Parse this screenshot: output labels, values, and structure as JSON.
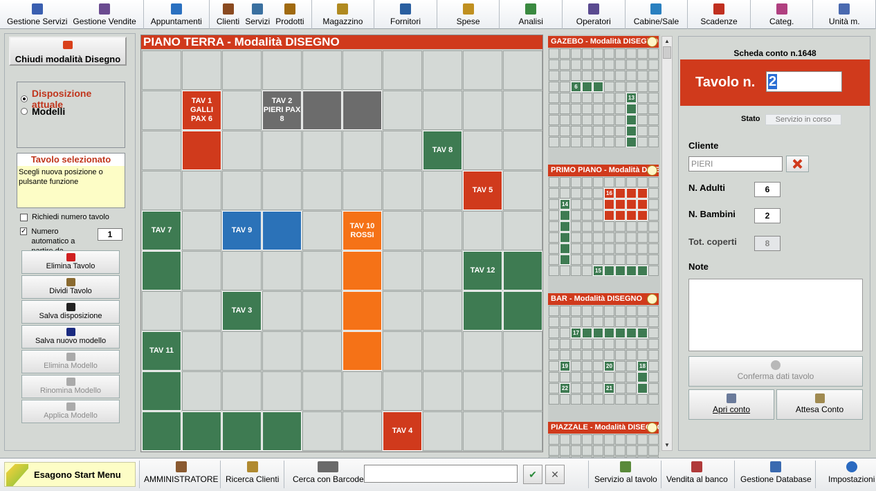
{
  "toolbar": {
    "items": [
      {
        "label": "Gestione Servizi",
        "icon": "services-icon",
        "color": "#3a5fb0"
      },
      {
        "label": "Gestione Vendite",
        "icon": "sales-icon",
        "color": "#6a4a90"
      },
      {
        "label": "Appuntamenti",
        "icon": "calendar-icon",
        "color": "#2a70c0"
      },
      {
        "label": "Clienti",
        "icon": "clients-icon",
        "color": "#8a4a20"
      },
      {
        "label": "Servizi",
        "icon": "services-list-icon",
        "color": "#3a70a0"
      },
      {
        "label": "Prodotti",
        "icon": "products-icon",
        "color": "#a06a10"
      },
      {
        "label": "Magazzino",
        "icon": "warehouse-icon",
        "color": "#b08a20"
      },
      {
        "label": "Fornitori",
        "icon": "suppliers-icon",
        "color": "#2a5fa0"
      },
      {
        "label": "Spese",
        "icon": "expenses-icon",
        "color": "#c09020"
      },
      {
        "label": "Analisi",
        "icon": "analysis-icon",
        "color": "#3a8a40"
      },
      {
        "label": "Operatori",
        "icon": "operators-icon",
        "color": "#5a4a90"
      },
      {
        "label": "Cabine/Sale",
        "icon": "rooms-icon",
        "color": "#2a80c0"
      },
      {
        "label": "Scadenze",
        "icon": "deadlines-icon",
        "color": "#c03020"
      },
      {
        "label": "Categ.",
        "icon": "categories-icon",
        "color": "#b04080"
      },
      {
        "label": "Unità m.",
        "icon": "units-icon",
        "color": "#4a6ab0"
      }
    ]
  },
  "left_panel": {
    "close_label": "Chiudi modalità Disegno",
    "radio_current": "Disposizione attuale",
    "radio_models": "Modelli",
    "selected_title": "Tavolo selezionato",
    "selected_msg": "Scegli nuova posizione o pulsante funzione",
    "ask_number_label": "Richiedi numero tavolo",
    "auto_number_label": "Numero automatico a partire da ....",
    "auto_number_value": "1",
    "buttons": [
      {
        "label": "Elimina Tavolo",
        "icon": "delete-icon",
        "color": "#d02020",
        "enabled": true
      },
      {
        "label": "Dividi Tavolo",
        "icon": "split-icon",
        "color": "#8a6a30",
        "enabled": true
      },
      {
        "label": "Salva disposizione",
        "icon": "save-icon",
        "color": "#222",
        "enabled": true
      },
      {
        "label": "Salva nuovo modello",
        "icon": "save-new-icon",
        "color": "#1a2a80",
        "enabled": true
      },
      {
        "label": "Elimina Modello",
        "icon": "delete-model-icon",
        "color": "#aaa",
        "enabled": false
      },
      {
        "label": "Rinomina Modello",
        "icon": "rename-icon",
        "color": "#aaa",
        "enabled": false
      },
      {
        "label": "Applica Modello",
        "icon": "apply-icon",
        "color": "#aaa",
        "enabled": false
      }
    ]
  },
  "grid": {
    "title": "PIANO TERRA - Modalità DISEGNO",
    "colors": {
      "red": "#d03a1c",
      "gray": "#6c6c6c",
      "green": "#3e7b52",
      "blue": "#2b72b8",
      "orange": "#f57217"
    },
    "cells": [
      {
        "r": 1,
        "c": 1,
        "color": "red",
        "label": "TAV 1 GALLI PAX 6"
      },
      {
        "r": 1,
        "c": 3,
        "color": "gray",
        "label": "TAV 2 PIERI PAX 8"
      },
      {
        "r": 1,
        "c": 4,
        "color": "gray",
        "label": ""
      },
      {
        "r": 1,
        "c": 5,
        "color": "gray",
        "label": ""
      },
      {
        "r": 2,
        "c": 1,
        "color": "red",
        "label": ""
      },
      {
        "r": 2,
        "c": 7,
        "color": "green",
        "label": "TAV 8"
      },
      {
        "r": 3,
        "c": 8,
        "color": "red",
        "label": "TAV 5"
      },
      {
        "r": 4,
        "c": 0,
        "color": "green",
        "label": "TAV 7"
      },
      {
        "r": 4,
        "c": 2,
        "color": "blue",
        "label": "TAV 9"
      },
      {
        "r": 4,
        "c": 3,
        "color": "blue",
        "label": ""
      },
      {
        "r": 4,
        "c": 5,
        "color": "orange",
        "label": "TAV 10 ROSSI"
      },
      {
        "r": 5,
        "c": 0,
        "color": "green",
        "label": ""
      },
      {
        "r": 5,
        "c": 5,
        "color": "orange",
        "label": ""
      },
      {
        "r": 5,
        "c": 8,
        "color": "green",
        "label": "TAV 12"
      },
      {
        "r": 5,
        "c": 9,
        "color": "green",
        "label": ""
      },
      {
        "r": 6,
        "c": 2,
        "color": "green",
        "label": "TAV 3"
      },
      {
        "r": 6,
        "c": 5,
        "color": "orange",
        "label": ""
      },
      {
        "r": 6,
        "c": 8,
        "color": "green",
        "label": ""
      },
      {
        "r": 6,
        "c": 9,
        "color": "green",
        "label": ""
      },
      {
        "r": 7,
        "c": 0,
        "color": "green",
        "label": "TAV 11"
      },
      {
        "r": 7,
        "c": 5,
        "color": "orange",
        "label": ""
      },
      {
        "r": 8,
        "c": 0,
        "color": "green",
        "label": ""
      },
      {
        "r": 9,
        "c": 0,
        "color": "green",
        "label": ""
      },
      {
        "r": 9,
        "c": 1,
        "color": "green",
        "label": ""
      },
      {
        "r": 9,
        "c": 2,
        "color": "green",
        "label": ""
      },
      {
        "r": 9,
        "c": 3,
        "color": "green",
        "label": ""
      },
      {
        "r": 9,
        "c": 6,
        "color": "red",
        "label": "TAV 4"
      }
    ]
  },
  "mini_maps": [
    {
      "title": "GAZEBO - Modalità DISEGNO",
      "cells": [
        {
          "r": 3,
          "c": 2,
          "color": "green",
          "label": "6"
        },
        {
          "r": 3,
          "c": 3,
          "color": "green",
          "label": ""
        },
        {
          "r": 3,
          "c": 4,
          "color": "green",
          "label": ""
        },
        {
          "r": 4,
          "c": 7,
          "color": "green",
          "label": "13"
        },
        {
          "r": 5,
          "c": 7,
          "color": "green",
          "label": ""
        },
        {
          "r": 6,
          "c": 7,
          "color": "green",
          "label": ""
        },
        {
          "r": 7,
          "c": 7,
          "color": "green",
          "label": ""
        },
        {
          "r": 8,
          "c": 7,
          "color": "green",
          "label": ""
        }
      ]
    },
    {
      "title": "PRIMO PIANO - Modalità DISEGNO",
      "cells": [
        {
          "r": 1,
          "c": 5,
          "color": "red",
          "label": "16"
        },
        {
          "r": 1,
          "c": 6,
          "color": "red",
          "label": ""
        },
        {
          "r": 1,
          "c": 7,
          "color": "red",
          "label": ""
        },
        {
          "r": 1,
          "c": 8,
          "color": "red",
          "label": ""
        },
        {
          "r": 2,
          "c": 5,
          "color": "red",
          "label": ""
        },
        {
          "r": 2,
          "c": 6,
          "color": "red",
          "label": ""
        },
        {
          "r": 2,
          "c": 7,
          "color": "red",
          "label": ""
        },
        {
          "r": 2,
          "c": 8,
          "color": "red",
          "label": ""
        },
        {
          "r": 3,
          "c": 5,
          "color": "red",
          "label": ""
        },
        {
          "r": 3,
          "c": 6,
          "color": "red",
          "label": ""
        },
        {
          "r": 3,
          "c": 7,
          "color": "red",
          "label": ""
        },
        {
          "r": 3,
          "c": 8,
          "color": "red",
          "label": ""
        },
        {
          "r": 2,
          "c": 1,
          "color": "green",
          "label": "14"
        },
        {
          "r": 3,
          "c": 1,
          "color": "green",
          "label": ""
        },
        {
          "r": 4,
          "c": 1,
          "color": "green",
          "label": ""
        },
        {
          "r": 5,
          "c": 1,
          "color": "green",
          "label": ""
        },
        {
          "r": 6,
          "c": 1,
          "color": "green",
          "label": ""
        },
        {
          "r": 7,
          "c": 1,
          "color": "green",
          "label": ""
        },
        {
          "r": 8,
          "c": 4,
          "color": "green",
          "label": "15"
        },
        {
          "r": 8,
          "c": 5,
          "color": "green",
          "label": ""
        },
        {
          "r": 8,
          "c": 6,
          "color": "green",
          "label": ""
        },
        {
          "r": 8,
          "c": 7,
          "color": "green",
          "label": ""
        },
        {
          "r": 8,
          "c": 8,
          "color": "green",
          "label": ""
        }
      ]
    },
    {
      "title": "BAR - Modalità DISEGNO",
      "cells": [
        {
          "r": 2,
          "c": 2,
          "color": "green",
          "label": "17"
        },
        {
          "r": 2,
          "c": 3,
          "color": "green",
          "label": ""
        },
        {
          "r": 2,
          "c": 4,
          "color": "green",
          "label": ""
        },
        {
          "r": 2,
          "c": 5,
          "color": "green",
          "label": ""
        },
        {
          "r": 2,
          "c": 6,
          "color": "green",
          "label": ""
        },
        {
          "r": 2,
          "c": 7,
          "color": "green",
          "label": ""
        },
        {
          "r": 2,
          "c": 8,
          "color": "green",
          "label": ""
        },
        {
          "r": 5,
          "c": 1,
          "color": "green",
          "label": "19"
        },
        {
          "r": 5,
          "c": 5,
          "color": "green",
          "label": "20"
        },
        {
          "r": 5,
          "c": 8,
          "color": "green",
          "label": "18"
        },
        {
          "r": 6,
          "c": 8,
          "color": "green",
          "label": ""
        },
        {
          "r": 7,
          "c": 8,
          "color": "green",
          "label": ""
        },
        {
          "r": 7,
          "c": 1,
          "color": "green",
          "label": "22"
        },
        {
          "r": 7,
          "c": 5,
          "color": "green",
          "label": "21"
        }
      ]
    },
    {
      "title": "PIAZZALE - Modalità DISEGNO",
      "cells": []
    }
  ],
  "right_panel": {
    "scheda": "Scheda conto n.1648",
    "tavolo_label": "Tavolo n.",
    "tavolo_value": "2",
    "stato_label": "Stato",
    "stato_value": "Servizio in corso",
    "cliente_label": "Cliente",
    "cliente_value": "PIERI",
    "adulti_label": "N. Adulti",
    "adulti_value": "6",
    "bambini_label": "N. Bambini",
    "bambini_value": "2",
    "coperti_label": "Tot. coperti",
    "coperti_value": "8",
    "note_label": "Note",
    "confirm_label": "Conferma dati tavolo",
    "open_label": "Apri conto",
    "wait_label": "Attesa Conto"
  },
  "bottombar": {
    "start_label": "Esagono Start Menu",
    "admin_label": "AMMINISTRATORE",
    "search_clients_label": "Ricerca Clienti",
    "barcode_label": "Cerca con Barcode",
    "service_table_label": "Servizio al tavolo",
    "counter_sale_label": "Vendita al banco",
    "db_label": "Gestione Database",
    "settings_label": "Impostazioni"
  }
}
